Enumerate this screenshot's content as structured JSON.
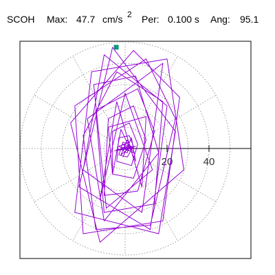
{
  "header": {
    "station": "SCOH",
    "max_label": "Max:",
    "max_value": "47.7",
    "max_unit": "cm/s",
    "max_unit_exp": "2",
    "period_label": "Per:",
    "period_value": "0.100 s",
    "angle_label": "Ang:",
    "angle_value": "95.1"
  },
  "chart_data": {
    "type": "line",
    "title": "",
    "xlabel": "",
    "ylabel": "",
    "units": "cm/s^2",
    "polar_grid": {
      "radii": [
        10,
        20,
        30,
        40,
        50
      ],
      "spoke_angles_deg": [
        0,
        30,
        60,
        90,
        120,
        150,
        180,
        210,
        240,
        270,
        300,
        330
      ],
      "style": "dotted",
      "color": "#808080"
    },
    "radial_axis": {
      "ticks": [
        20,
        40
      ],
      "tick_labels": [
        "20",
        "40"
      ],
      "direction_deg": 0,
      "color": "#000000"
    },
    "marker": {
      "label": "peak",
      "angle_deg": 95.1,
      "radius": 47.7,
      "color": "#0f9a78"
    },
    "series": [
      {
        "color": "#9400d3",
        "points": [
          [
            0,
            0
          ],
          [
            2,
            -1
          ],
          [
            -1,
            2
          ],
          [
            3,
            1
          ],
          [
            -2,
            -3
          ],
          [
            1,
            4
          ],
          [
            4,
            -2
          ],
          [
            -3,
            1
          ],
          [
            2,
            3
          ],
          [
            -1,
            -4
          ],
          [
            3,
            5
          ],
          [
            5,
            -6
          ],
          [
            -2,
            9
          ],
          [
            -6,
            -12
          ],
          [
            -8,
            10
          ],
          [
            10,
            15
          ],
          [
            8,
            -18
          ],
          [
            -4,
            22
          ],
          [
            -12,
            -24
          ],
          [
            0,
            26
          ],
          [
            13,
            -10
          ],
          [
            -9,
            -28
          ],
          [
            -15,
            30
          ],
          [
            5,
            34
          ],
          [
            16,
            -2
          ],
          [
            -10,
            -34
          ],
          [
            -18,
            14
          ],
          [
            18,
            40
          ],
          [
            8,
            -30
          ],
          [
            -20,
            -10
          ],
          [
            -10,
            44
          ],
          [
            20,
            20
          ],
          [
            12,
            -38
          ],
          [
            -22,
            -18
          ],
          [
            -6,
            47.5
          ],
          [
            24,
            8
          ],
          [
            16,
            -40
          ],
          [
            -24,
            -30
          ],
          [
            -16,
            36
          ],
          [
            20,
            42
          ],
          [
            28,
            -10
          ],
          [
            -12,
            -44
          ],
          [
            -26,
            12
          ],
          [
            4,
            46
          ],
          [
            26,
            24
          ],
          [
            18,
            -34
          ],
          [
            -20,
            -40
          ],
          [
            -24,
            20
          ],
          [
            10,
            42
          ],
          [
            24,
            14
          ],
          [
            12,
            -36
          ],
          [
            -14,
            -38
          ],
          [
            -20,
            6
          ],
          [
            -4,
            36
          ],
          [
            18,
            22
          ],
          [
            14,
            -26
          ],
          [
            -10,
            -30
          ],
          [
            -14,
            18
          ],
          [
            6,
            28
          ],
          [
            14,
            8
          ],
          [
            6,
            -20
          ],
          [
            -10,
            -22
          ],
          [
            -8,
            14
          ],
          [
            4,
            20
          ],
          [
            10,
            4
          ],
          [
            4,
            -14
          ],
          [
            -6,
            -12
          ],
          [
            -6,
            8
          ],
          [
            2,
            12
          ],
          [
            6,
            2
          ],
          [
            3,
            -8
          ],
          [
            -4,
            -6
          ],
          [
            -3,
            5
          ],
          [
            2,
            6
          ],
          [
            4,
            1
          ],
          [
            1,
            -4
          ],
          [
            -3,
            -3
          ],
          [
            -1,
            3
          ],
          [
            2,
            2
          ],
          [
            1,
            -2
          ],
          [
            -1,
            -1
          ],
          [
            0,
            1
          ],
          [
            4,
            0.5
          ],
          [
            -4,
            -0.5
          ],
          [
            5,
            1
          ],
          [
            -5,
            -1
          ],
          [
            3,
            0
          ],
          [
            -2,
            0.5
          ],
          [
            1,
            -0.5
          ],
          [
            0,
            0
          ]
        ]
      }
    ]
  }
}
